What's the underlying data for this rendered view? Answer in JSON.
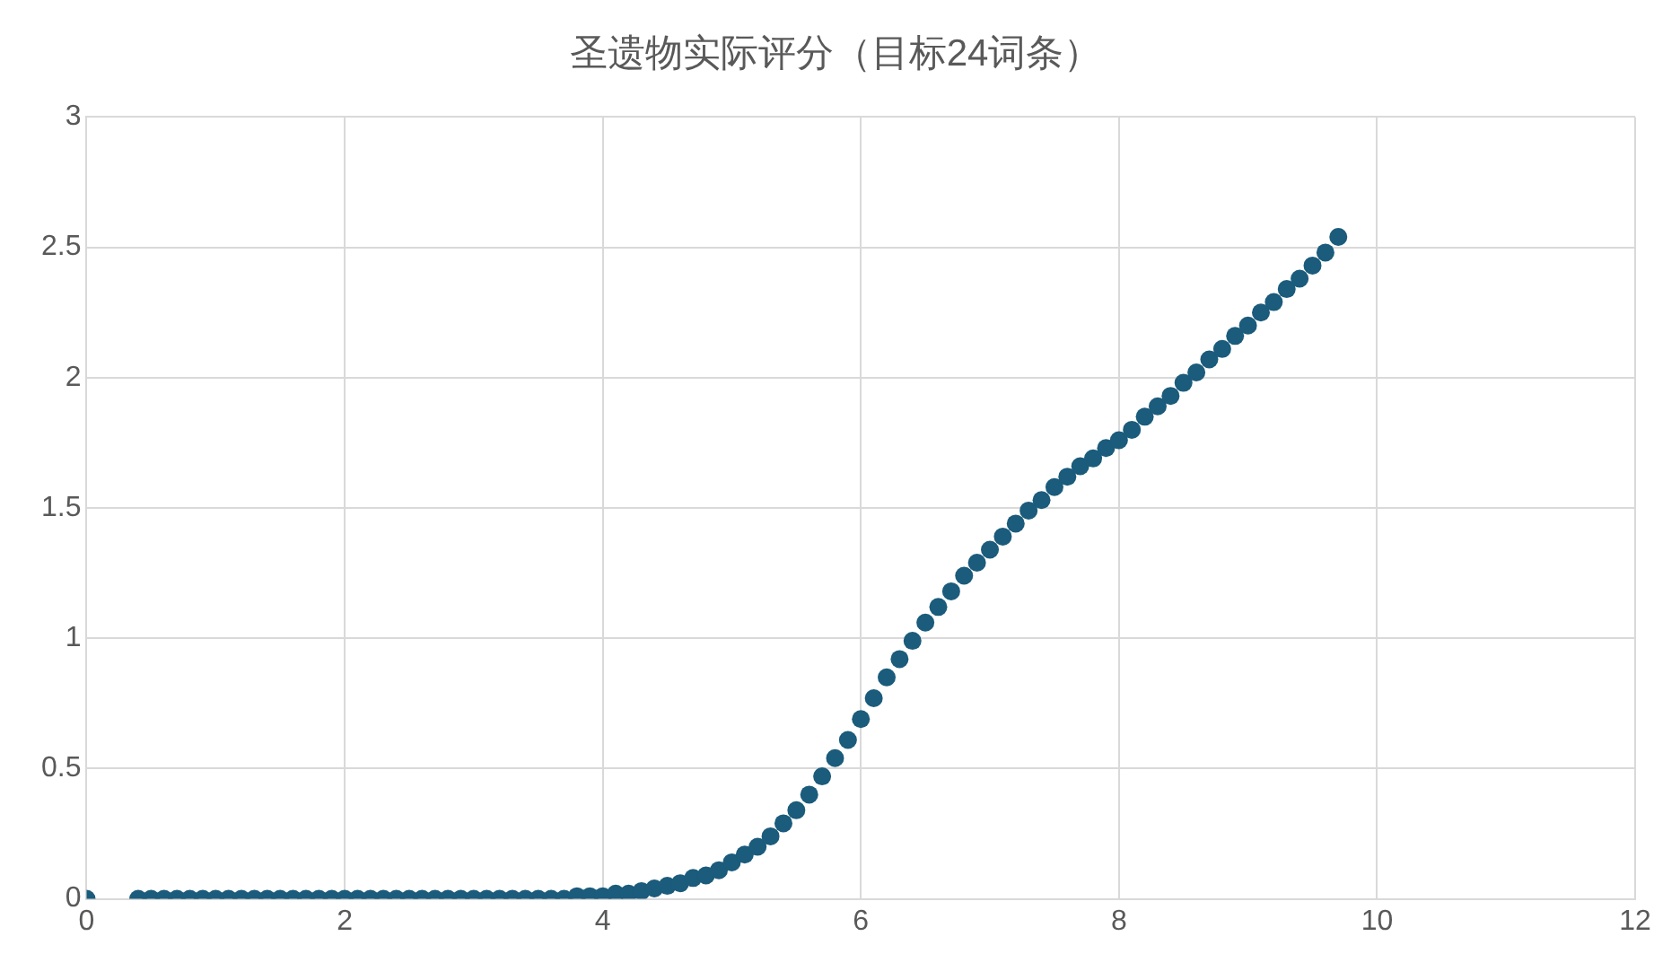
{
  "chart_data": {
    "type": "scatter",
    "title": "圣遗物实际评分（目标24词条）",
    "x": [
      0,
      0.4,
      0.5,
      0.6,
      0.7,
      0.8,
      0.9,
      1,
      1.1,
      1.2,
      1.3,
      1.4,
      1.5,
      1.6,
      1.7,
      1.8,
      1.9,
      2,
      2.1,
      2.2,
      2.3,
      2.4,
      2.5,
      2.6,
      2.7,
      2.8,
      2.9,
      3,
      3.1,
      3.2,
      3.3,
      3.4,
      3.5,
      3.6,
      3.7,
      3.8,
      3.9,
      4,
      4.1,
      4.2,
      4.3,
      4.4,
      4.5,
      4.6,
      4.7,
      4.8,
      4.9,
      5,
      5.1,
      5.2,
      5.3,
      5.4,
      5.5,
      5.6,
      5.7,
      5.8,
      5.9,
      6,
      6.1,
      6.2,
      6.3,
      6.4,
      6.5,
      6.6,
      6.7,
      6.8,
      6.9,
      7,
      7.1,
      7.2,
      7.3,
      7.4,
      7.5,
      7.6,
      7.7,
      7.8,
      7.9,
      8,
      8.1,
      8.2,
      8.3,
      8.4,
      8.5,
      8.6,
      8.7,
      8.8,
      8.9,
      9,
      9.1,
      9.2,
      9.3,
      9.4,
      9.5,
      9.6,
      9.7
    ],
    "series": [
      {
        "color": "#1b5b7b",
        "values": [
          0,
          0,
          0,
          0,
          0,
          0,
          0,
          0,
          0,
          0,
          0,
          0,
          0,
          0,
          0,
          0,
          0,
          0,
          0,
          0,
          0,
          0,
          0,
          0,
          0,
          0,
          0,
          0,
          0,
          0,
          0,
          0,
          0,
          0,
          0,
          0.01,
          0.01,
          0.01,
          0.02,
          0.02,
          0.03,
          0.04,
          0.05,
          0.06,
          0.08,
          0.09,
          0.11,
          0.14,
          0.17,
          0.2,
          0.24,
          0.29,
          0.34,
          0.4,
          0.47,
          0.54,
          0.61,
          0.69,
          0.77,
          0.85,
          0.92,
          0.99,
          1.06,
          1.12,
          1.18,
          1.24,
          1.29,
          1.34,
          1.39,
          1.44,
          1.49,
          1.53,
          1.58,
          1.62,
          1.66,
          1.69,
          1.73,
          1.76,
          1.8,
          1.85,
          1.89,
          1.93,
          1.98,
          2.02,
          2.07,
          2.11,
          2.16,
          2.2,
          2.25,
          2.29,
          2.34,
          2.38,
          2.43,
          2.48,
          2.54
        ]
      }
    ],
    "xlim": [
      0,
      12
    ],
    "xticks": [
      0,
      2,
      4,
      6,
      8,
      10,
      12
    ],
    "ylim": [
      0,
      3
    ],
    "yticks": [
      0,
      0.5,
      1,
      1.5,
      2,
      2.5,
      3
    ],
    "grid": true,
    "marker": "circle"
  }
}
